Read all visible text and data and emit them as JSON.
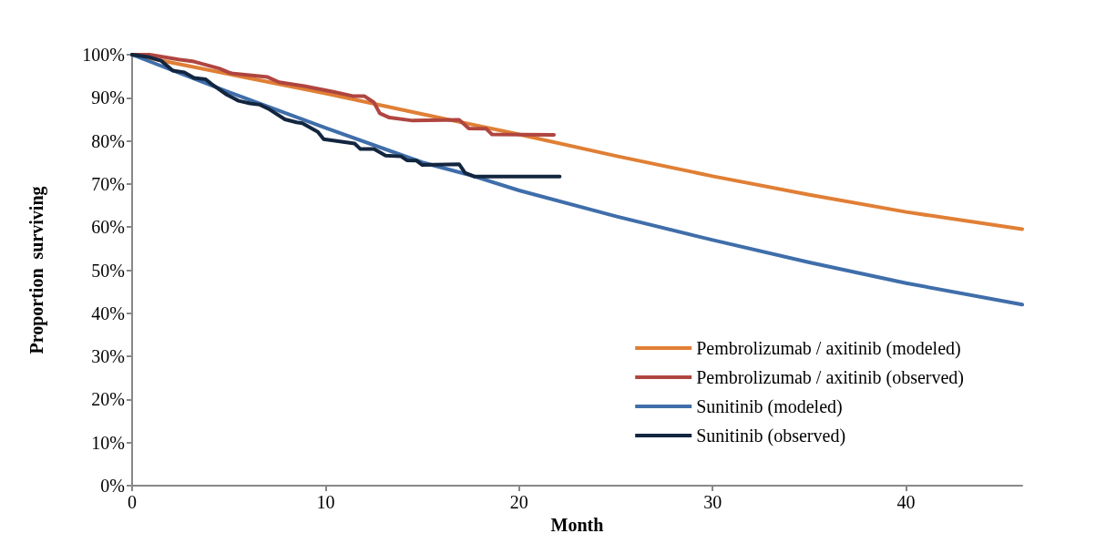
{
  "chart_data": {
    "type": "line",
    "xlabel": "Month",
    "ylabel": "Proportion  surviving",
    "xlim": [
      0,
      46
    ],
    "xticks": [
      0,
      10,
      20,
      30,
      40
    ],
    "ylim": [
      0,
      100
    ],
    "yticks": [
      {
        "value": 0,
        "label": "0%"
      },
      {
        "value": 10,
        "label": "10%"
      },
      {
        "value": 20,
        "label": "20%"
      },
      {
        "value": 30,
        "label": "30%"
      },
      {
        "value": 40,
        "label": "40%"
      },
      {
        "value": 50,
        "label": "50%"
      },
      {
        "value": 60,
        "label": "60%"
      },
      {
        "value": 70,
        "label": "70%"
      },
      {
        "value": 80,
        "label": "80%"
      },
      {
        "value": 90,
        "label": "90%"
      },
      {
        "value": 100,
        "label": "100%"
      }
    ],
    "grid": false,
    "legend": "bottom right",
    "marker": "none",
    "line_style": "solid",
    "series": [
      {
        "name": "Pembrolizumab / axitinib (modeled)",
        "color": "#e07f35",
        "x": [
          0,
          5,
          10,
          15,
          20,
          25,
          30,
          35,
          40,
          46
        ],
        "values": [
          100,
          95.5,
          91,
          86.2,
          81.5,
          76.5,
          71.8,
          67.5,
          63.5,
          59.5
        ]
      },
      {
        "name": "Pembrolizumab / axitinib (observed)",
        "color": "#b04540",
        "x": [
          0,
          0.9,
          2.4,
          3.2,
          4.5,
          5.1,
          7,
          7.6,
          8.9,
          10.4,
          11.4,
          12,
          12.5,
          12.8,
          13.3,
          14.5,
          16.9,
          17.4,
          18.3,
          18.6,
          21.8
        ],
        "values": [
          100,
          100,
          98.9,
          98.4,
          96.8,
          95.7,
          94.8,
          93.6,
          92.7,
          91.4,
          90.4,
          90.4,
          88.9,
          86.4,
          85.4,
          84.7,
          84.9,
          82.9,
          82.8,
          81.5,
          81.4
        ]
      },
      {
        "name": "Sunitinib (modeled)",
        "color": "#3f6eaa",
        "x": [
          0,
          5,
          10,
          15,
          17.5,
          20,
          25,
          30,
          35,
          40,
          46
        ],
        "values": [
          100,
          91.3,
          83,
          75,
          72,
          68.5,
          62.5,
          57,
          51.8,
          47,
          42
        ]
      },
      {
        "name": "Sunitinib (observed)",
        "color": "#13263f",
        "x": [
          0,
          0.9,
          1.5,
          2.1,
          2.7,
          3.2,
          3.8,
          4.1,
          4.9,
          5.5,
          6.1,
          6.6,
          7.1,
          7.9,
          8.5,
          8.8,
          9.6,
          9.9,
          11.5,
          11.8,
          12.5,
          13.1,
          13.9,
          14.2,
          14.7,
          15,
          16.9,
          17.2,
          17.7,
          22.1
        ],
        "values": [
          100,
          99.4,
          98.6,
          96.3,
          95.9,
          94.6,
          94.3,
          93.2,
          90.7,
          89.3,
          88.7,
          88.4,
          87.3,
          85,
          84.3,
          84.1,
          82.1,
          80.4,
          79.4,
          78.1,
          78.1,
          76.6,
          76.4,
          75.5,
          75.4,
          74.4,
          74.6,
          72.6,
          71.7,
          71.7
        ]
      }
    ]
  }
}
